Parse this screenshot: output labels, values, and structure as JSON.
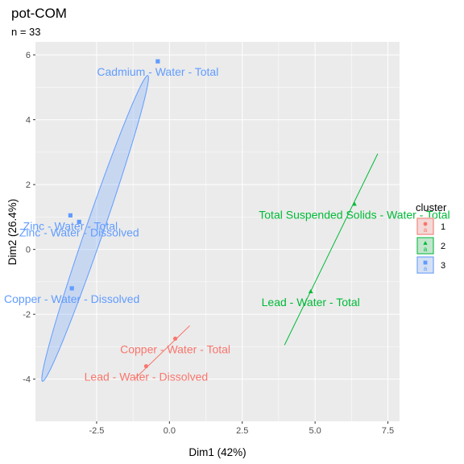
{
  "chart_data": {
    "type": "scatter",
    "title": "pot-COM",
    "subtitle": "n = 33",
    "xlabel": "Dim1 (42%)",
    "ylabel": "Dim2 (26.4%)",
    "xlim": [
      -4.6,
      7.9
    ],
    "ylim": [
      -5.3,
      6.4
    ],
    "x_ticks": [
      -2.5,
      0.0,
      2.5,
      5.0,
      7.5
    ],
    "x_tick_labels": [
      "-2.5",
      "0.0",
      "2.5",
      "5.0",
      "7.5"
    ],
    "y_ticks": [
      -4,
      -2,
      0,
      2,
      4,
      6
    ],
    "y_tick_labels": [
      "-4",
      "-2",
      "0",
      "2",
      "4",
      "6"
    ],
    "grid": true,
    "legend": {
      "title": "cluster",
      "position": "right",
      "entries": [
        "1",
        "2",
        "3"
      ]
    },
    "colors": {
      "1": "#F8766D",
      "2": "#00BA38",
      "3": "#619CFF"
    },
    "series": [
      {
        "name": "1",
        "marker": "circle",
        "points": [
          {
            "label": "Copper - Water - Total",
            "x": 0.2,
            "y": -2.75
          },
          {
            "label": "Lead - Water - Dissolved",
            "x": -0.8,
            "y": -3.6
          }
        ],
        "hull": [
          [
            0.7,
            -2.35
          ],
          [
            -1.2,
            -4.0
          ]
        ]
      },
      {
        "name": "2",
        "marker": "triangle",
        "points": [
          {
            "label": "Total Suspended Solids - Water - Total",
            "x": 6.35,
            "y": 1.4
          },
          {
            "label": "Lead - Water - Total",
            "x": 4.85,
            "y": -1.3
          }
        ],
        "hull": [
          [
            7.15,
            2.95
          ],
          [
            3.95,
            -2.95
          ]
        ]
      },
      {
        "name": "3",
        "marker": "square",
        "points": [
          {
            "label": "Cadmium - Water - Total",
            "x": -0.4,
            "y": 5.8
          },
          {
            "label": "Zinc - Water - Total",
            "x": -3.4,
            "y": 1.05
          },
          {
            "label": "Zinc - Water - Dissolved",
            "x": -3.1,
            "y": 0.85
          },
          {
            "label": "Copper - Water - Dissolved",
            "x": -3.35,
            "y": -1.2
          }
        ],
        "ellipse": {
          "center": [
            -2.55,
            0.65
          ],
          "semi_major": 5.05,
          "semi_minor": 0.3,
          "angle_deg": 69
        }
      }
    ]
  }
}
